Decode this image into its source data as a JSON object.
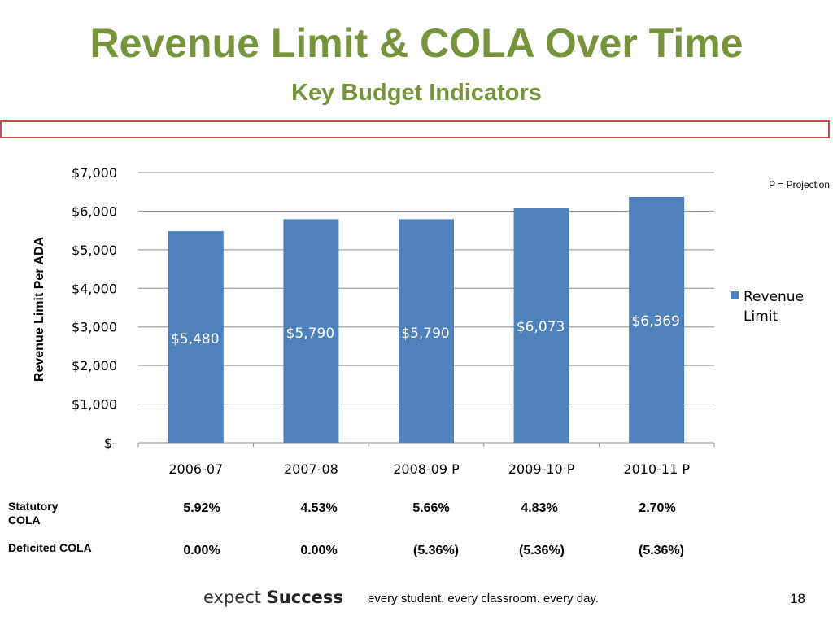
{
  "slide": {
    "title": "Revenue Limit & COLA Over Time",
    "subtitle": "Key Budget Indicators",
    "projection_note": "P = Projection",
    "page_number": "18"
  },
  "footer": {
    "brand_light": "expect ",
    "brand_bold": "Success",
    "tagline": "every student.  every classroom.  every day."
  },
  "chart_data": {
    "type": "bar",
    "categories": [
      "2006-07",
      "2007-08",
      "2008-09 P",
      "2009-10 P",
      "2010-11 P"
    ],
    "series": [
      {
        "name": "Revenue Limit",
        "values": [
          5480,
          5790,
          5790,
          6073,
          6369
        ],
        "color": "#4f81bd"
      }
    ],
    "data_labels": [
      "$5,480",
      "$5,790",
      "$5,790",
      "$6,073",
      "$6,369"
    ],
    "ylabel": "Revenue Limit Per ADA",
    "ylim": [
      0,
      7000
    ],
    "yticks": [
      0,
      1000,
      2000,
      3000,
      4000,
      5000,
      6000,
      7000
    ],
    "ytick_labels": [
      "$-",
      "$1,000",
      "$2,000",
      "$3,000",
      "$4,000",
      "$5,000",
      "$6,000",
      "$7,000"
    ],
    "grid": true,
    "legend_placement": "right",
    "legend_label_lines": [
      "Revenue",
      "Limit"
    ]
  },
  "cola_table": {
    "statutory": {
      "label_lines": [
        "Statutory",
        "COLA"
      ],
      "values": [
        "5.92%",
        "4.53%",
        "5.66%",
        "4.83%",
        "2.70%"
      ]
    },
    "deficited": {
      "label": "Deficited COLA",
      "values": [
        "0.00%",
        "0.00%",
        "(5.36%)",
        "(5.36%)",
        "(5.36%)"
      ]
    }
  }
}
